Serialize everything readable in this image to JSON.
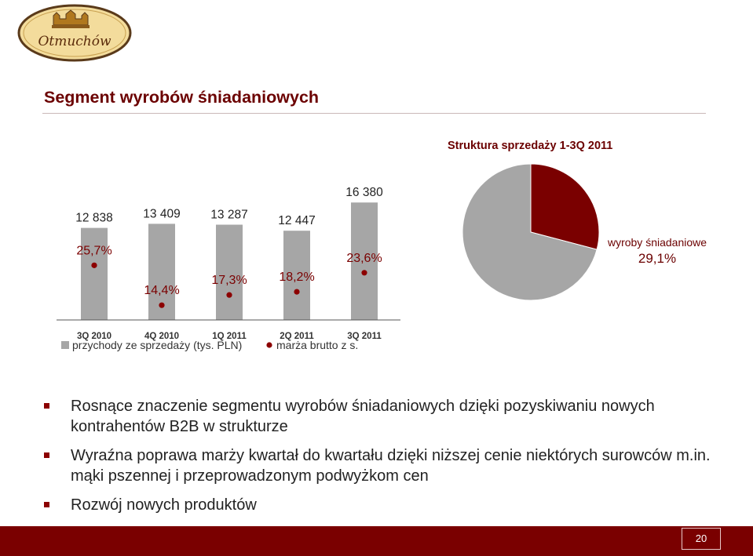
{
  "logo": {
    "text": "Otmuchów"
  },
  "header": {
    "title": "Segment wyrobów śniadaniowych"
  },
  "chart_data": [
    {
      "type": "bar",
      "categories": [
        "3Q 2010",
        "4Q 2010",
        "1Q 2011",
        "2Q 2011",
        "3Q 2011"
      ],
      "series": [
        {
          "name": "przychody ze sprzedaży (tys. PLN)",
          "values": [
            12838,
            13409,
            13287,
            12447,
            16380
          ],
          "labels": [
            "12 838",
            "13 409",
            "13 287",
            "12 447",
            "16 380"
          ],
          "color": "#a6a6a6"
        },
        {
          "name": "marża brutto z s.",
          "values": [
            25.7,
            14.4,
            17.3,
            18.2,
            23.6
          ],
          "labels": [
            "25,7%",
            "14,4%",
            "17,3%",
            "18,2%",
            "23,6%"
          ],
          "color": "#8c0000"
        }
      ],
      "legend": "bottom"
    },
    {
      "type": "pie",
      "title": "Struktura sprzedaży 1-3Q 2011",
      "slices": [
        {
          "name": "wyroby śniadaniowe",
          "value": 29.1,
          "label": "29,1%",
          "color": "#7a0000"
        },
        {
          "name": "",
          "value": 70.9,
          "color": "#a6a6a6"
        }
      ]
    }
  ],
  "bullets": [
    "Rosnące znaczenie segmentu wyrobów śniadaniowych dzięki pozyskiwaniu nowych kontrahentów B2B w strukturze",
    "Wyraźna poprawa marży kwartał do kwartału dzięki niższej cenie niektórych surowców m.in. mąki pszennej i przeprowadzonym podwyżkom cen",
    "Rozwój nowych produktów"
  ],
  "footer": {
    "page_number": "20"
  }
}
